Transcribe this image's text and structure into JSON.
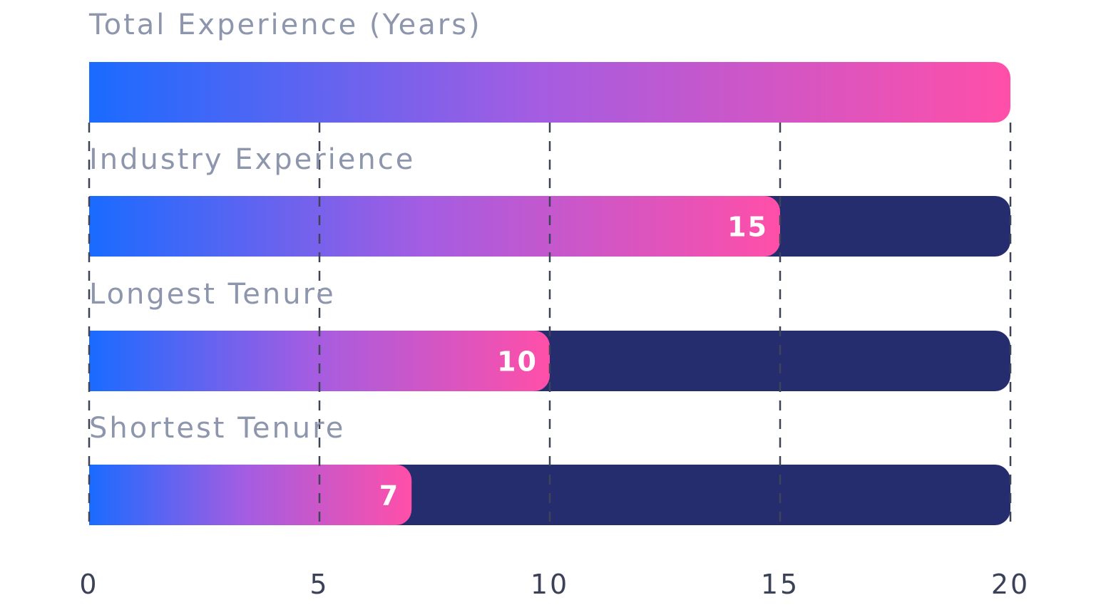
{
  "chart_data": {
    "type": "bar",
    "orientation": "horizontal",
    "categories": [
      "Total Experience (Years)",
      "Industry Experience",
      "Longest Tenure",
      "Shortest Tenure"
    ],
    "values": [
      20,
      15,
      10,
      7
    ],
    "value_labels": [
      "",
      "15",
      "10",
      "7"
    ],
    "xlim": [
      0,
      20
    ],
    "xticks": [
      0,
      5,
      10,
      15,
      20
    ],
    "xtick_labels": [
      "0",
      "5",
      "10",
      "15",
      "20"
    ],
    "grid": "vertical dashed",
    "colors": {
      "gradient_start": "#1a6bff",
      "gradient_mid": "#a35de2",
      "gradient_end": "#ff4fa8",
      "track": "#262d6f",
      "category_label": "#8e96ad",
      "value_label": "#ffffff",
      "tick_label": "#3b4258",
      "grid": "#3d4457"
    }
  }
}
